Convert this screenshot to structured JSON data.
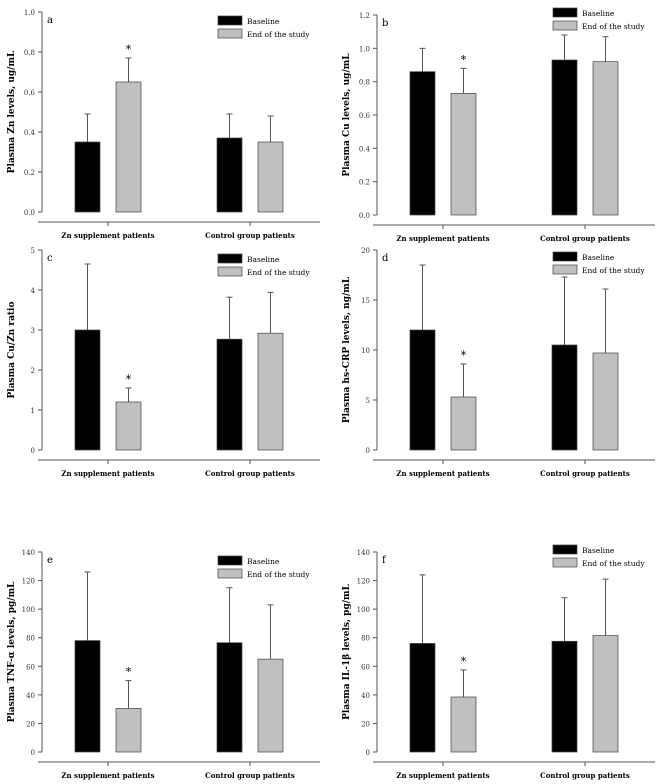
{
  "colors": {
    "baseline": "#000000",
    "end": "#c0c0c0",
    "axis": "#555555"
  },
  "chart_data": [
    {
      "type": "bar",
      "panel_label": "a",
      "ylabel": "Plasma Zn levels, ug/mL",
      "ylim": [
        0,
        1.0
      ],
      "yticks": [
        "0.0",
        "0.2",
        "0.4",
        "0.6",
        "0.8",
        "1.0"
      ],
      "categories": [
        "Zn supplement patients",
        "Control group patients"
      ],
      "legend": "top-right",
      "series": [
        {
          "name": "Baseline",
          "values": [
            0.35,
            0.37
          ],
          "errors": [
            0.14,
            0.12
          ]
        },
        {
          "name": "End of the study",
          "values": [
            0.65,
            0.35
          ],
          "errors": [
            0.12,
            0.13
          ]
        }
      ],
      "significance": [
        "*",
        ""
      ]
    },
    {
      "type": "bar",
      "panel_label": "b",
      "ylabel": "Plasma Cu levels, ug/mL",
      "ylim": [
        0,
        1.2
      ],
      "yticks": [
        "0.0",
        "0.2",
        "0.4",
        "0.6",
        "0.8",
        "1.0",
        "1.2"
      ],
      "categories": [
        "Zn supplement patients",
        "Control group patients"
      ],
      "legend": "top-right",
      "series": [
        {
          "name": "Baseline",
          "values": [
            0.86,
            0.93
          ],
          "errors": [
            0.14,
            0.15
          ]
        },
        {
          "name": "End of the study",
          "values": [
            0.73,
            0.92
          ],
          "errors": [
            0.15,
            0.15
          ]
        }
      ],
      "significance": [
        "*",
        ""
      ]
    },
    {
      "type": "bar",
      "panel_label": "c",
      "ylabel": "Plasma Cu/Zn ratio",
      "ylim": [
        0,
        5
      ],
      "yticks": [
        "0",
        "1",
        "2",
        "3",
        "4",
        "5"
      ],
      "categories": [
        "Zn supplement patients",
        "Control group patients"
      ],
      "legend": "top-right",
      "series": [
        {
          "name": "Baseline",
          "values": [
            3.0,
            2.77
          ],
          "errors": [
            1.65,
            1.05
          ]
        },
        {
          "name": "End of the study",
          "values": [
            1.2,
            2.92
          ],
          "errors": [
            0.35,
            1.02
          ]
        }
      ],
      "significance": [
        "*",
        ""
      ]
    },
    {
      "type": "bar",
      "panel_label": "d",
      "ylabel": "Plasma hs-CRP levels, ng/mL",
      "ylim": [
        0,
        20
      ],
      "yticks": [
        "0",
        "5",
        "10",
        "15",
        "20"
      ],
      "categories": [
        "Zn supplement patients",
        "Control group patients"
      ],
      "legend": "top-right",
      "series": [
        {
          "name": "Baseline",
          "values": [
            12.0,
            10.5
          ],
          "errors": [
            6.5,
            6.8
          ]
        },
        {
          "name": "End of the study",
          "values": [
            5.3,
            9.7
          ],
          "errors": [
            3.3,
            6.4
          ]
        }
      ],
      "significance": [
        "*",
        ""
      ]
    },
    {
      "type": "bar",
      "panel_label": "e",
      "ylabel": "Plasma TNF-α levels, pg/mL",
      "ylim": [
        0,
        140
      ],
      "yticks": [
        "0",
        "20",
        "40",
        "60",
        "80",
        "100",
        "120",
        "140"
      ],
      "categories": [
        "Zn supplement patients",
        "Control group patients"
      ],
      "legend": "top-right",
      "series": [
        {
          "name": "Baseline",
          "values": [
            78,
            76.5
          ],
          "errors": [
            48,
            38.5
          ]
        },
        {
          "name": "End of the study",
          "values": [
            30.5,
            65
          ],
          "errors": [
            19.5,
            38
          ]
        }
      ],
      "significance": [
        "*",
        ""
      ]
    },
    {
      "type": "bar",
      "panel_label": "f",
      "ylabel": "Plasma IL-1β levels, pg/mL",
      "ylim": [
        0,
        140
      ],
      "yticks": [
        "0",
        "20",
        "40",
        "60",
        "80",
        "100",
        "120",
        "140"
      ],
      "categories": [
        "Zn supplement patients",
        "Control group patients"
      ],
      "legend": "top-right",
      "series": [
        {
          "name": "Baseline",
          "values": [
            76,
            77.5
          ],
          "errors": [
            48,
            30.5
          ]
        },
        {
          "name": "End of the study",
          "values": [
            38.5,
            81.5
          ],
          "errors": [
            19,
            39.5
          ]
        }
      ],
      "significance": [
        "*",
        ""
      ]
    }
  ]
}
